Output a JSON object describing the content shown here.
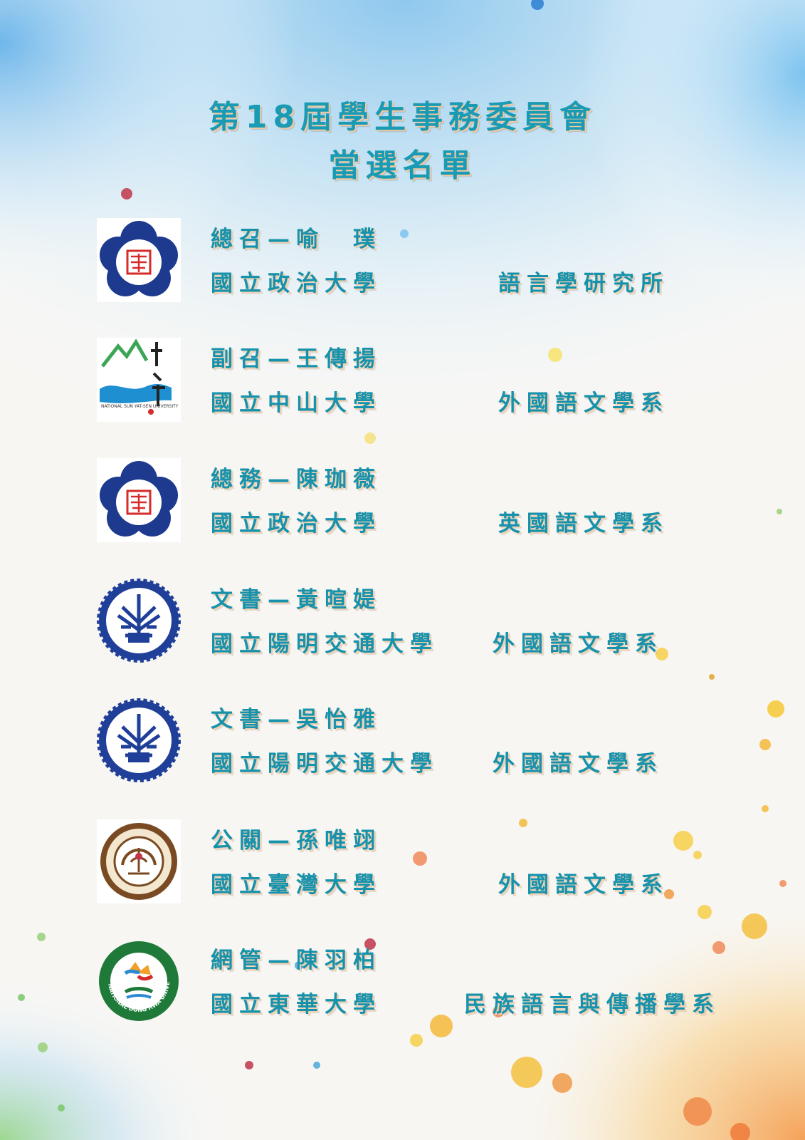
{
  "title": {
    "line1": "第18屆學生事務委員會",
    "line2": "當選名單"
  },
  "entries": [
    {
      "role_name": "總召—喻　璞",
      "school": "國立政治大學",
      "department": "語言學研究所",
      "logo": "nccu-logo-icon"
    },
    {
      "role_name": "副召—王傳揚",
      "school": "國立中山大學",
      "department": "外國語文學系",
      "logo": "nsysu-logo-icon"
    },
    {
      "role_name": "總務—陳珈薇",
      "school": "國立政治大學",
      "department": "英國語文學系",
      "logo": "nccu-logo-icon"
    },
    {
      "role_name": "文書—黃暄媞",
      "school": "國立陽明交通大學",
      "department": "外國語文學系",
      "logo": "nycu-logo-icon"
    },
    {
      "role_name": "文書—吳怡雅",
      "school": "國立陽明交通大學",
      "department": "外國語文學系",
      "logo": "nycu-logo-icon"
    },
    {
      "role_name": "公關—孫唯翊",
      "school": "國立臺灣大學",
      "department": "外國語文學系",
      "logo": "ntu-logo-icon"
    },
    {
      "role_name": "網管—陳羽柏",
      "school": "國立東華大學",
      "department": "民族語言與傳播學系",
      "logo": "ndhu-logo-icon"
    }
  ],
  "logo_text": {
    "nsysu": "NATIONAL SUN YAT-SEN UNIVERSITY",
    "ndhu": "NATIONAL DONG HWA UNIVERSITY"
  },
  "colors": {
    "text": "#1692ad",
    "shadow": "#f3d2b2",
    "nccu_blue": "#1d3a8f",
    "nycu_blue": "#1f3f99",
    "ntu_brown": "#7a4a22",
    "ndhu_green": "#1f7a3a"
  }
}
